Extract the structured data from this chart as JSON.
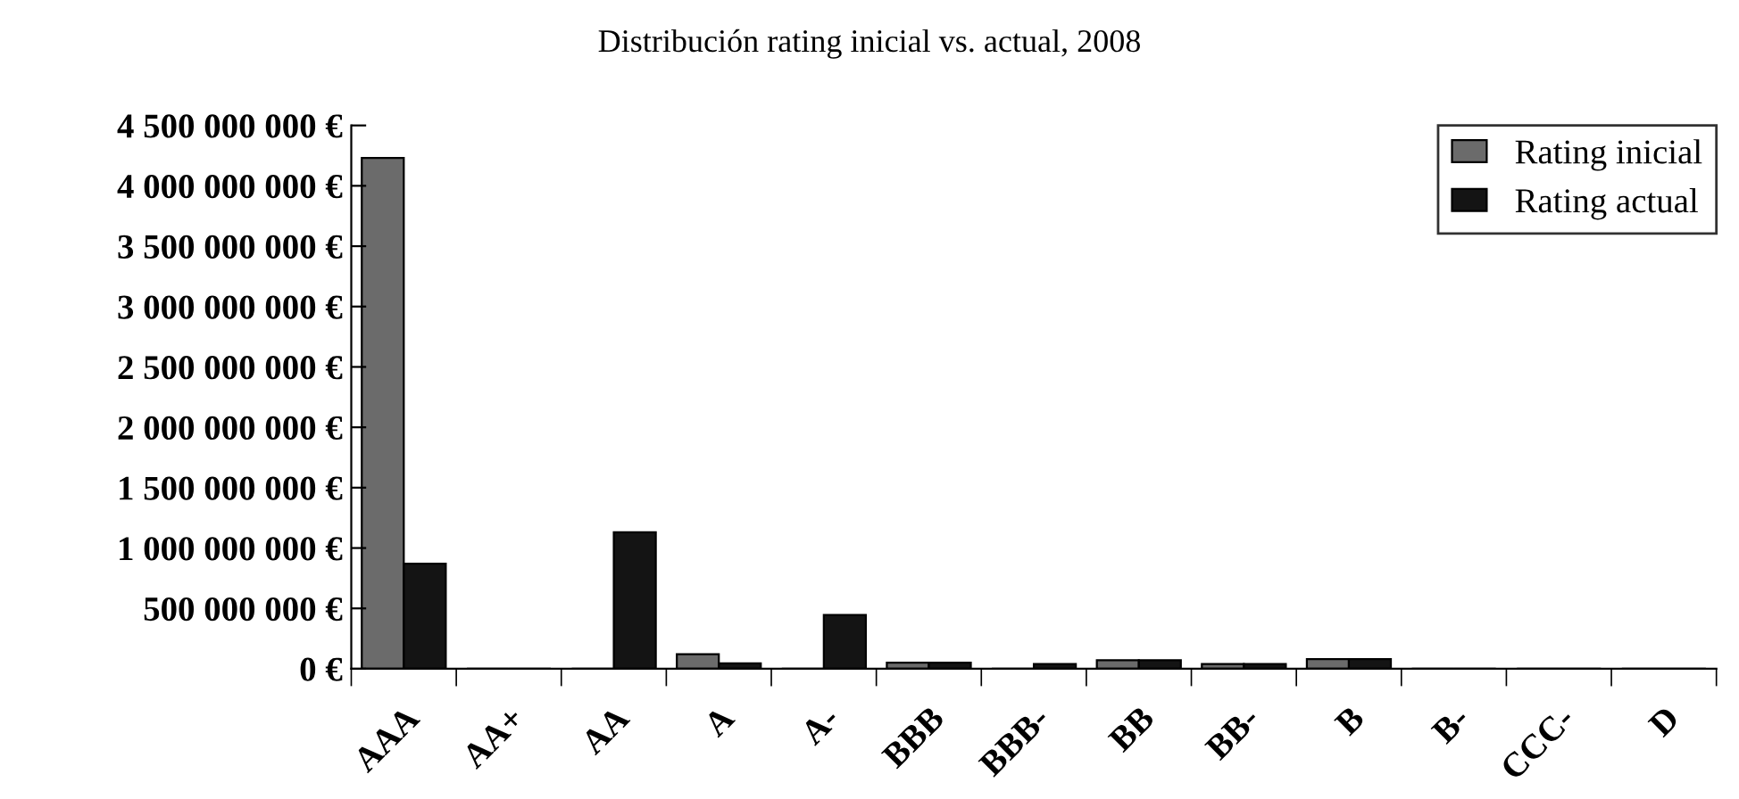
{
  "chart_data": {
    "type": "bar",
    "title": "Distribución rating inicial vs. actual, 2008",
    "categories": [
      "AAA",
      "AA+",
      "AA",
      "A",
      "A-",
      "BBB",
      "BBB-",
      "BB",
      "BB-",
      "B",
      "B-",
      "CCC-",
      "D"
    ],
    "series": [
      {
        "name": "Rating inicial",
        "color": "#6b6b6b",
        "values": [
          4230000000,
          0,
          0,
          120000000,
          0,
          50000000,
          0,
          70000000,
          40000000,
          80000000,
          0,
          0,
          0
        ]
      },
      {
        "name": "Rating actual",
        "color": "#141414",
        "values": [
          870000000,
          0,
          1130000000,
          45000000,
          445000000,
          50000000,
          40000000,
          70000000,
          40000000,
          80000000,
          0,
          0,
          0
        ]
      }
    ],
    "ylim": [
      0,
      4500000000
    ],
    "yticks": [
      {
        "value": 0,
        "label": "0 €"
      },
      {
        "value": 500000000,
        "label": "500 000 000 €"
      },
      {
        "value": 1000000000,
        "label": "1 000 000 000 €"
      },
      {
        "value": 1500000000,
        "label": "1 500 000 000 €"
      },
      {
        "value": 2000000000,
        "label": "2 000 000 000 €"
      },
      {
        "value": 2500000000,
        "label": "2 500 000 000 €"
      },
      {
        "value": 3000000000,
        "label": "3 000 000 000 €"
      },
      {
        "value": 3500000000,
        "label": "3 500 000 000 €"
      },
      {
        "value": 4000000000,
        "label": "4 000 000 000 €"
      },
      {
        "value": 4500000000,
        "label": "4 500 000 000 €"
      }
    ],
    "grid": false,
    "legend": "top right"
  }
}
